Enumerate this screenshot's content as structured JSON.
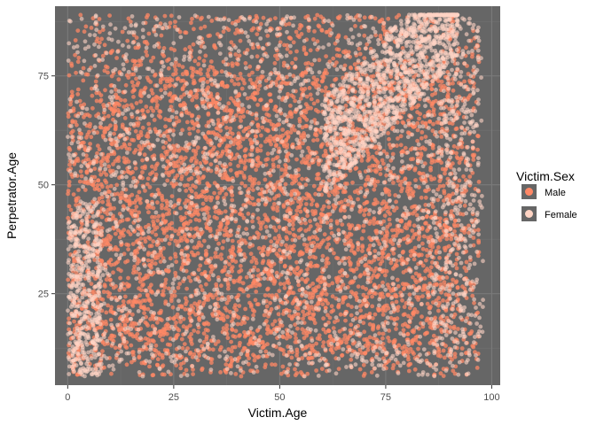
{
  "chart_data": {
    "type": "scatter",
    "title": "",
    "xlabel": "Victim.Age",
    "ylabel": "Perpetrator.Age",
    "xlim": [
      -3,
      102
    ],
    "ylim": [
      4,
      91
    ],
    "x_ticks": [
      0,
      25,
      50,
      75,
      100
    ],
    "y_ticks": [
      25,
      50,
      75
    ],
    "grid": true,
    "panel_background": "#666666",
    "legend": {
      "title": "Victim.Sex",
      "position": "right",
      "entries": [
        {
          "label": "Male",
          "color": "#ff8866"
        },
        {
          "label": "Female",
          "color": "#ffd4c4"
        }
      ]
    },
    "series": [
      {
        "name": "Male",
        "color": "#ff8866",
        "opacity": 0.75,
        "dense_region": {
          "x": [
            0,
            97
          ],
          "y": [
            6,
            89
          ]
        },
        "point_count": 6000
      },
      {
        "name": "Female",
        "color": "#ffd4c4",
        "opacity": 0.6,
        "dense_region": {
          "x": [
            0,
            97
          ],
          "y": [
            6,
            89
          ]
        },
        "point_count": 3500
      }
    ]
  }
}
